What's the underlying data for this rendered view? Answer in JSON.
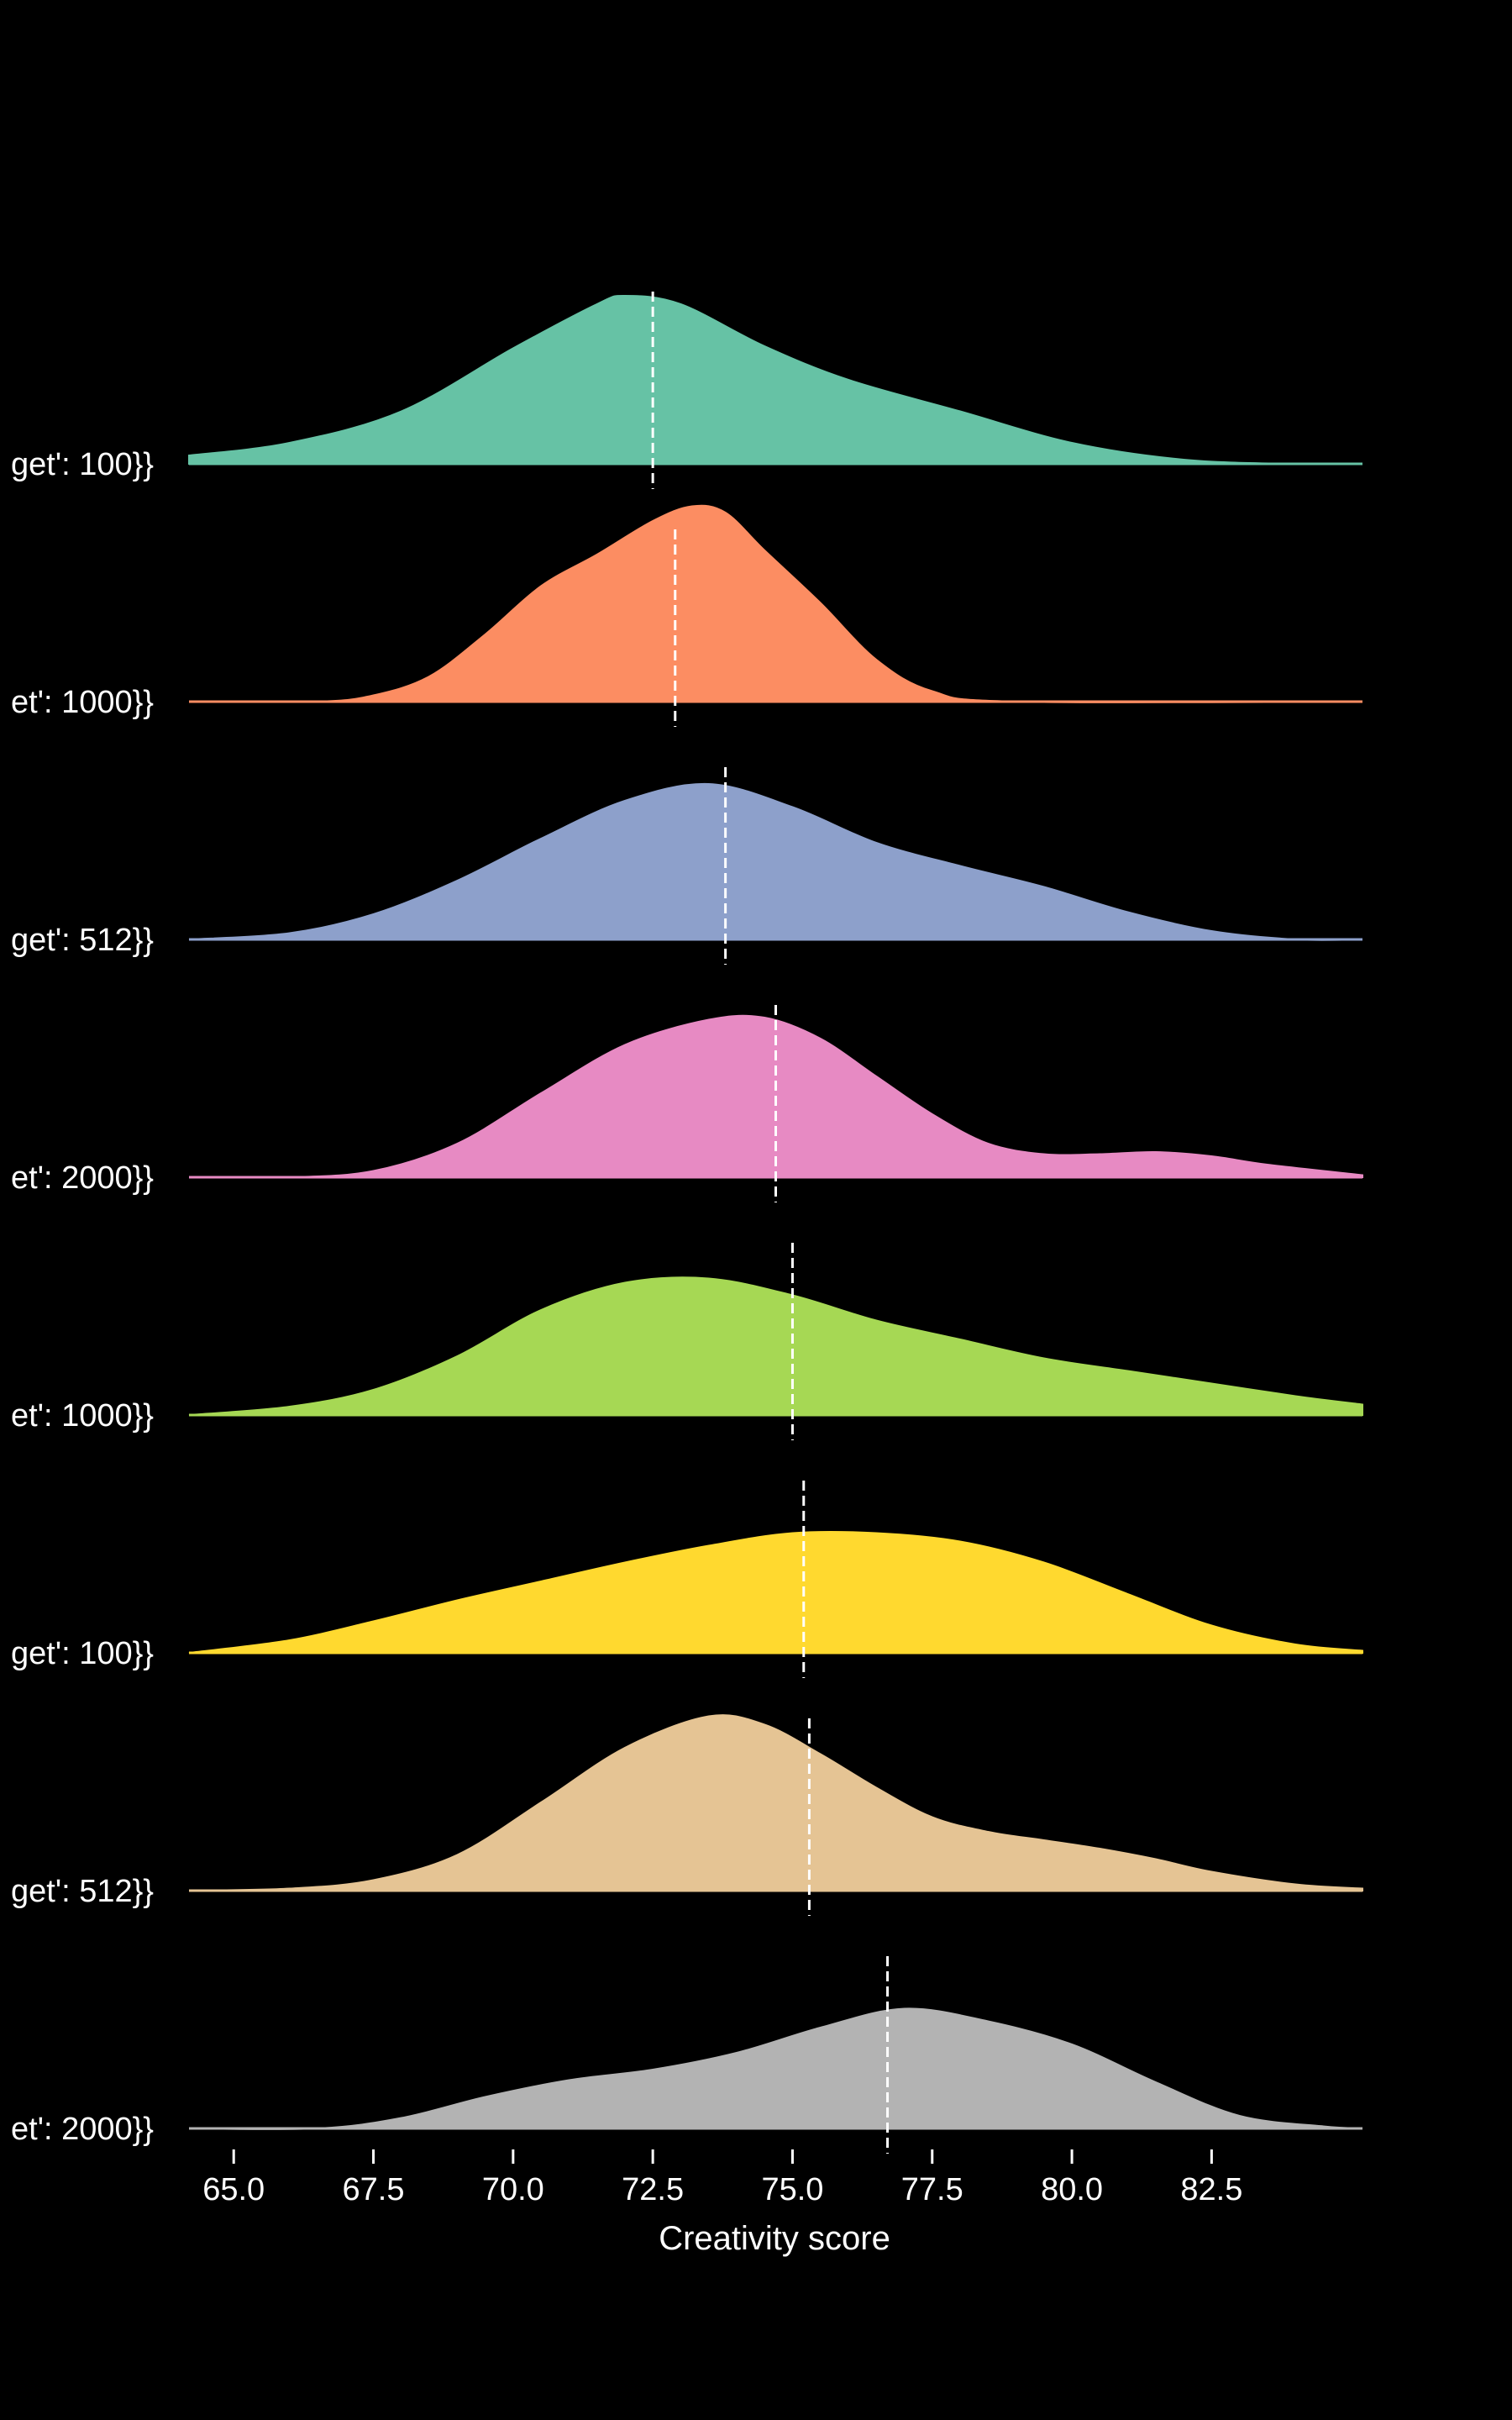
{
  "chart_data": {
    "type": "ridgeline",
    "title": "",
    "xlabel": "Creativity score",
    "ylabel": "",
    "xlim": [
      64.2,
      85.2
    ],
    "xticks": [
      "65.0",
      "67.5",
      "70.0",
      "72.5",
      "75.0",
      "77.5",
      "80.0",
      "82.5"
    ],
    "grid": false,
    "mean_marker": "white dashed vertical line",
    "series": [
      {
        "name": "get': 100}}",
        "color": "#66c2a5",
        "mean": 72.5,
        "points": [
          [
            64.2,
            0.04
          ],
          [
            66.0,
            0.1
          ],
          [
            68.0,
            0.25
          ],
          [
            70.0,
            0.55
          ],
          [
            71.5,
            0.76
          ],
          [
            72.0,
            0.8
          ],
          [
            73.0,
            0.76
          ],
          [
            74.5,
            0.56
          ],
          [
            76.0,
            0.4
          ],
          [
            78.0,
            0.25
          ],
          [
            80.0,
            0.1
          ],
          [
            82.0,
            0.02
          ],
          [
            84.0,
            0.0
          ],
          [
            85.2,
            0.0
          ]
        ]
      },
      {
        "name": "et': 1000}}",
        "color": "#fc8d62",
        "mean": 72.9,
        "points": [
          [
            64.2,
            0.0
          ],
          [
            66.5,
            0.0
          ],
          [
            67.5,
            0.03
          ],
          [
            68.5,
            0.12
          ],
          [
            69.5,
            0.32
          ],
          [
            70.5,
            0.55
          ],
          [
            71.5,
            0.7
          ],
          [
            72.5,
            0.86
          ],
          [
            73.2,
            0.93
          ],
          [
            73.8,
            0.9
          ],
          [
            74.5,
            0.72
          ],
          [
            75.5,
            0.47
          ],
          [
            76.5,
            0.2
          ],
          [
            77.5,
            0.05
          ],
          [
            79.0,
            0.0
          ],
          [
            85.2,
            0.0
          ]
        ]
      },
      {
        "name": "get': 512}}",
        "color": "#8da0cb",
        "mean": 73.8,
        "points": [
          [
            64.2,
            0.0
          ],
          [
            66.0,
            0.03
          ],
          [
            67.5,
            0.12
          ],
          [
            69.0,
            0.28
          ],
          [
            70.5,
            0.48
          ],
          [
            72.0,
            0.66
          ],
          [
            73.5,
            0.74
          ],
          [
            75.0,
            0.63
          ],
          [
            76.5,
            0.46
          ],
          [
            78.0,
            0.35
          ],
          [
            79.5,
            0.25
          ],
          [
            81.0,
            0.13
          ],
          [
            82.5,
            0.04
          ],
          [
            84.0,
            0.0
          ],
          [
            85.2,
            0.0
          ]
        ]
      },
      {
        "name": "et': 2000}}",
        "color": "#e78ac3",
        "mean": 74.7,
        "points": [
          [
            64.2,
            0.0
          ],
          [
            66.0,
            0.0
          ],
          [
            67.5,
            0.03
          ],
          [
            69.0,
            0.16
          ],
          [
            70.5,
            0.4
          ],
          [
            72.0,
            0.63
          ],
          [
            73.5,
            0.75
          ],
          [
            74.5,
            0.76
          ],
          [
            75.5,
            0.66
          ],
          [
            76.5,
            0.48
          ],
          [
            77.5,
            0.3
          ],
          [
            78.5,
            0.16
          ],
          [
            79.5,
            0.11
          ],
          [
            80.5,
            0.11
          ],
          [
            81.5,
            0.12
          ],
          [
            82.5,
            0.1
          ],
          [
            83.5,
            0.06
          ],
          [
            85.2,
            0.01
          ]
        ]
      },
      {
        "name": "et': 1000}}",
        "color": "#a6d854",
        "mean": 75.0,
        "points": [
          [
            64.2,
            0.0
          ],
          [
            66.0,
            0.04
          ],
          [
            67.5,
            0.12
          ],
          [
            69.0,
            0.28
          ],
          [
            70.5,
            0.5
          ],
          [
            72.0,
            0.63
          ],
          [
            73.5,
            0.65
          ],
          [
            75.0,
            0.57
          ],
          [
            76.5,
            0.45
          ],
          [
            78.0,
            0.36
          ],
          [
            79.5,
            0.27
          ],
          [
            81.0,
            0.21
          ],
          [
            82.5,
            0.15
          ],
          [
            84.0,
            0.09
          ],
          [
            85.2,
            0.05
          ]
        ]
      },
      {
        "name": "get': 100}}",
        "color": "#ffd92f",
        "mean": 75.2,
        "points": [
          [
            64.2,
            0.0
          ],
          [
            66.0,
            0.06
          ],
          [
            67.5,
            0.15
          ],
          [
            69.0,
            0.25
          ],
          [
            70.5,
            0.34
          ],
          [
            72.0,
            0.43
          ],
          [
            73.5,
            0.51
          ],
          [
            75.0,
            0.57
          ],
          [
            76.5,
            0.57
          ],
          [
            78.0,
            0.53
          ],
          [
            79.5,
            0.43
          ],
          [
            81.0,
            0.28
          ],
          [
            82.5,
            0.13
          ],
          [
            84.0,
            0.04
          ],
          [
            85.2,
            0.01
          ]
        ]
      },
      {
        "name": "get': 512}}",
        "color": "#e5c494",
        "mean": 75.3,
        "points": [
          [
            64.2,
            0.0
          ],
          [
            66.0,
            0.01
          ],
          [
            67.5,
            0.05
          ],
          [
            69.0,
            0.17
          ],
          [
            70.5,
            0.42
          ],
          [
            72.0,
            0.68
          ],
          [
            73.5,
            0.83
          ],
          [
            74.5,
            0.79
          ],
          [
            75.5,
            0.65
          ],
          [
            76.5,
            0.49
          ],
          [
            77.5,
            0.35
          ],
          [
            78.5,
            0.28
          ],
          [
            79.5,
            0.24
          ],
          [
            80.5,
            0.2
          ],
          [
            81.5,
            0.15
          ],
          [
            82.5,
            0.09
          ],
          [
            84.0,
            0.03
          ],
          [
            85.2,
            0.01
          ]
        ]
      },
      {
        "name": "et': 2000}}",
        "color": "#b3b3b3",
        "mean": 76.7,
        "points": [
          [
            64.2,
            0.0
          ],
          [
            66.5,
            0.0
          ],
          [
            68.0,
            0.05
          ],
          [
            69.5,
            0.15
          ],
          [
            71.0,
            0.23
          ],
          [
            72.5,
            0.28
          ],
          [
            74.0,
            0.36
          ],
          [
            75.5,
            0.48
          ],
          [
            77.0,
            0.57
          ],
          [
            78.5,
            0.51
          ],
          [
            80.0,
            0.4
          ],
          [
            81.5,
            0.22
          ],
          [
            83.0,
            0.06
          ],
          [
            84.5,
            0.01
          ],
          [
            85.2,
            0.0
          ]
        ]
      }
    ]
  }
}
